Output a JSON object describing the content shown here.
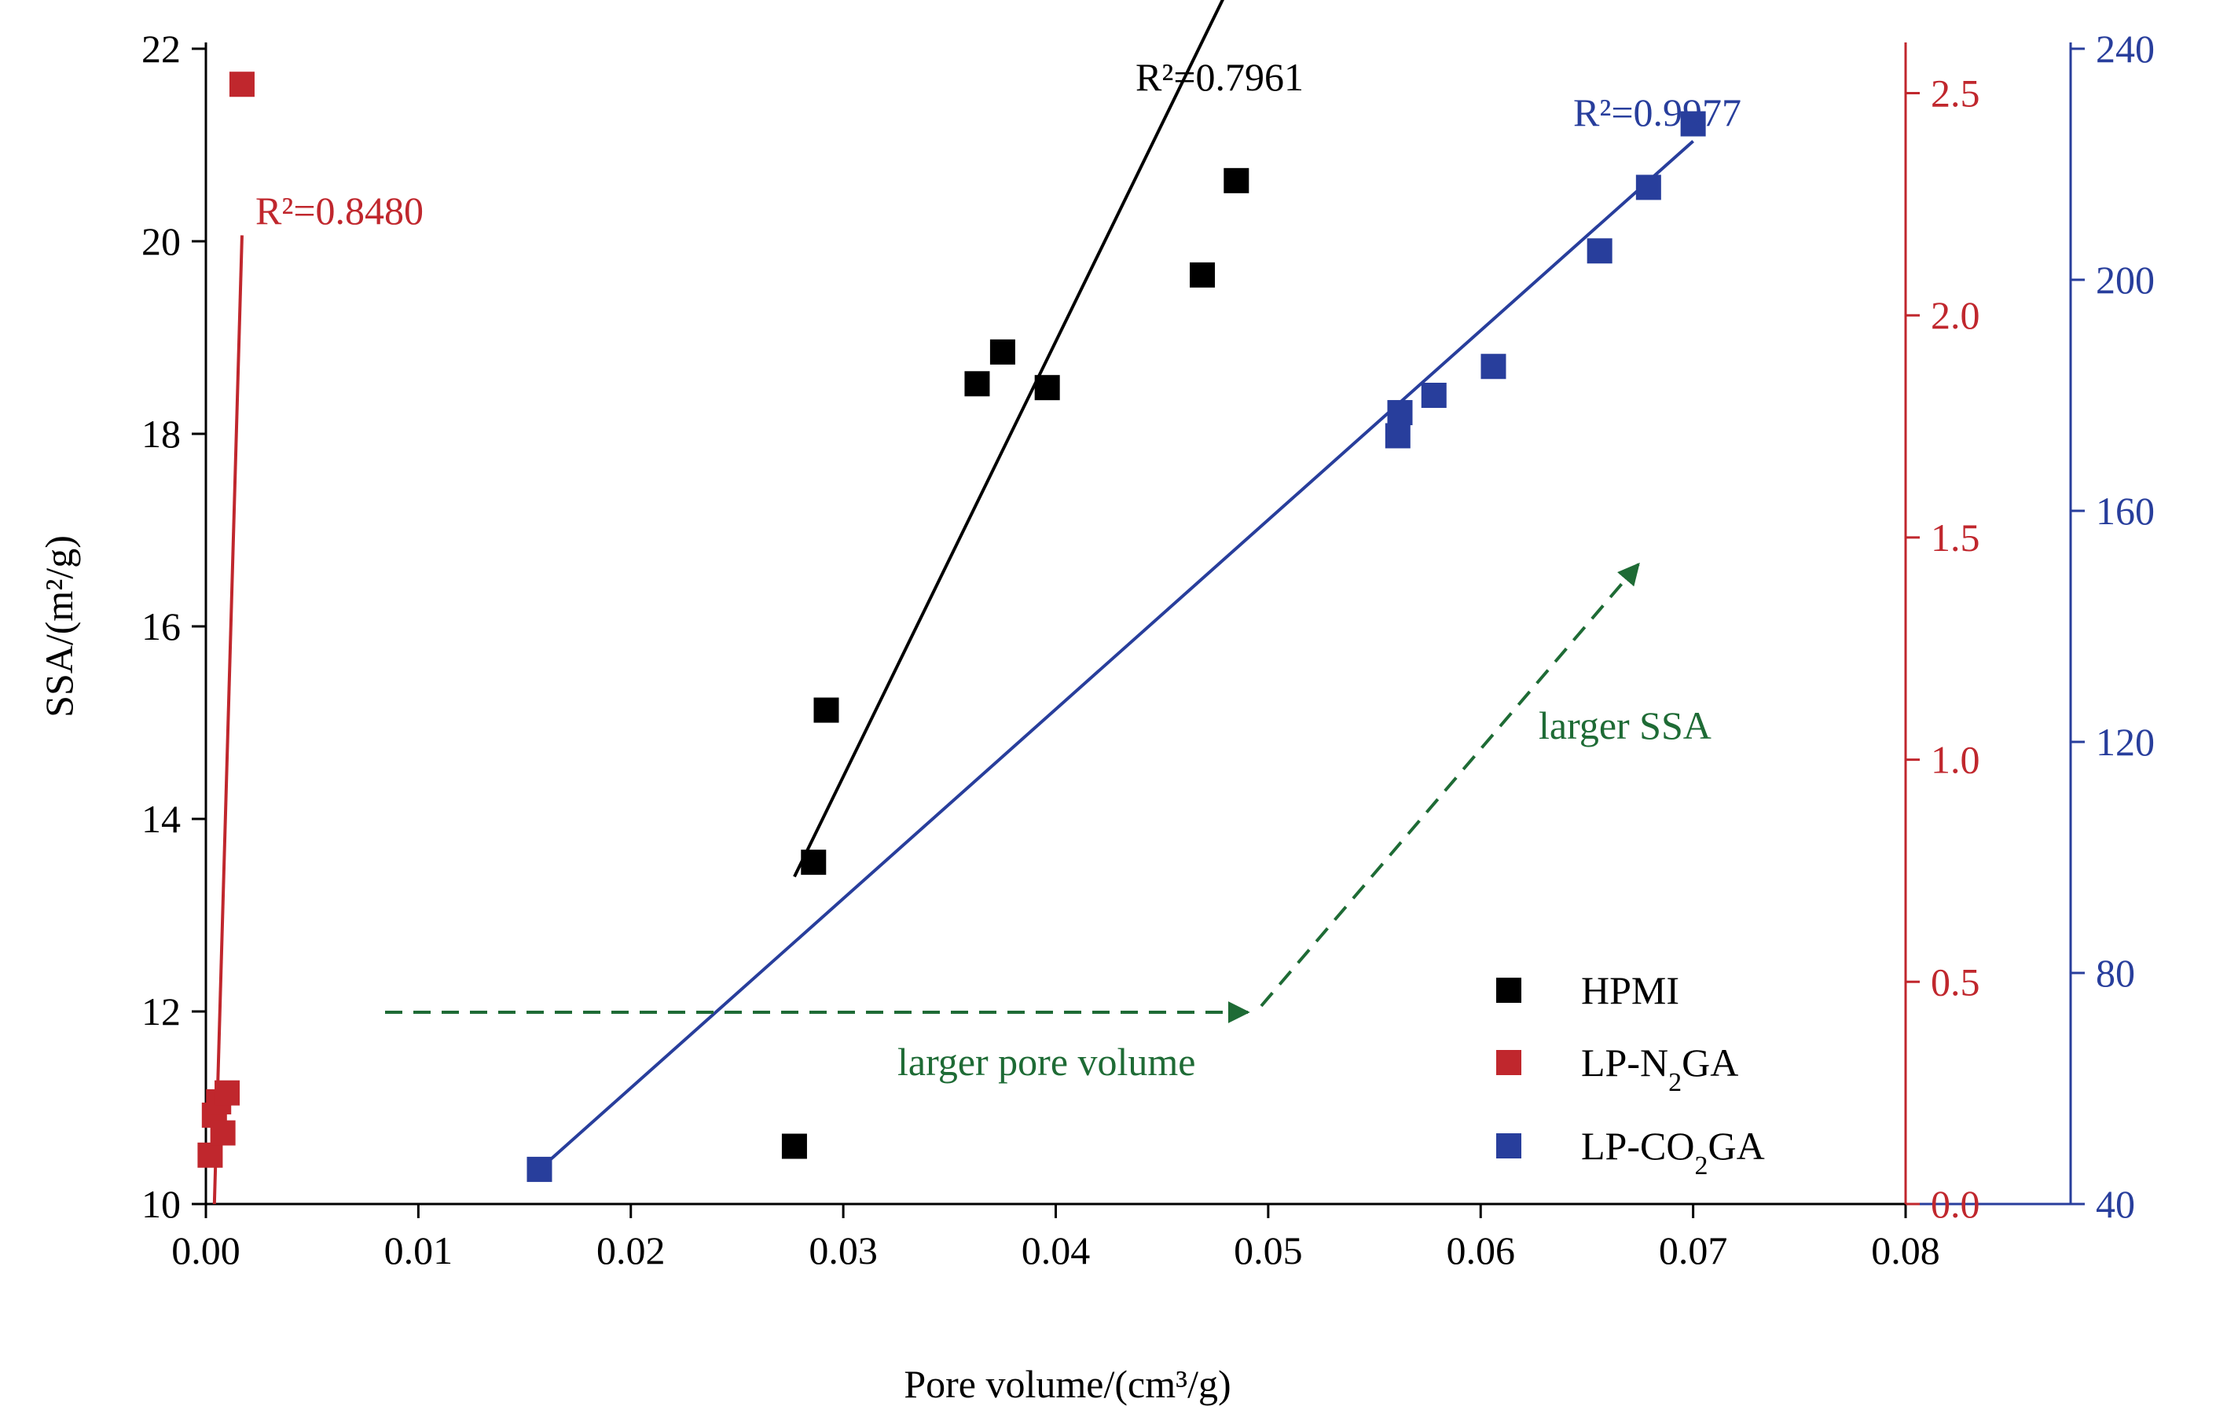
{
  "colors": {
    "hpmi": "#000000",
    "n2ga": "#c0272d",
    "co2ga": "#283e9c",
    "annotation": "#1e6b35"
  },
  "chart_data": {
    "type": "scatter",
    "title": "",
    "xlabel": "Pore volume/(cm³/g)",
    "xlim": [
      0,
      0.08
    ],
    "xticks": [
      "0.00",
      "0.01",
      "0.02",
      "0.03",
      "0.04",
      "0.05",
      "0.06",
      "0.07",
      "0.08"
    ],
    "axes": {
      "left": {
        "label": "SSA/(m²/g)",
        "ylim": [
          10,
          22
        ],
        "ticks": [
          "10",
          "12",
          "14",
          "16",
          "18",
          "20",
          "22"
        ]
      },
      "right_red": {
        "ylim": [
          0,
          2.6
        ],
        "ticks": [
          "0.0",
          "0.5",
          "1.0",
          "1.5",
          "2.0",
          "2.5"
        ]
      },
      "right_blue": {
        "ylim": [
          40,
          240
        ],
        "ticks": [
          "40",
          "80",
          "120",
          "160",
          "200",
          "240"
        ]
      }
    },
    "series": [
      {
        "name": "HPMI",
        "legend_html": "HPMI",
        "axis": "left",
        "x": [
          0.0277,
          0.0286,
          0.0292,
          0.0363,
          0.0375,
          0.0396,
          0.0469,
          0.0485
        ],
        "y": [
          10.6,
          13.55,
          15.13,
          18.52,
          18.85,
          18.48,
          19.65,
          20.63
        ],
        "fit": {
          "x": [
            0.0277,
            0.0485
          ],
          "y": [
            13.4,
            22.8
          ],
          "r2_label": "R²=0.7961"
        }
      },
      {
        "name": "LP-N2GA",
        "legend_html": "LP-N<tspan baseline-shift='sub' font-size='34'>2</tspan>GA",
        "axis": "right_red",
        "x": [
          0.0002,
          0.0004,
          0.0006,
          0.0008,
          0.001,
          0.0017
        ],
        "y": [
          0.11,
          0.2,
          0.23,
          0.16,
          0.25,
          2.52
        ],
        "fit": {
          "x": [
            0.0004,
            0.0017
          ],
          "y": [
            0.0,
            2.18
          ],
          "r2_label": "R²=0.8480"
        }
      },
      {
        "name": "LP-CO2GA",
        "legend_html": "LP-CO<tspan baseline-shift='sub' font-size='34'>2</tspan>GA",
        "axis": "right_blue",
        "x": [
          0.0157,
          0.0561,
          0.0562,
          0.0578,
          0.0606,
          0.0656,
          0.0679,
          0.07
        ],
        "y": [
          46,
          173,
          177,
          180,
          185,
          205,
          216,
          227
        ],
        "fit": {
          "x": [
            0.0157,
            0.07
          ],
          "y": [
            46,
            224
          ],
          "r2_label": "R²=0.9977"
        }
      }
    ],
    "annotations": [
      {
        "text": "larger pore volume"
      },
      {
        "text": "larger SSA"
      }
    ]
  }
}
